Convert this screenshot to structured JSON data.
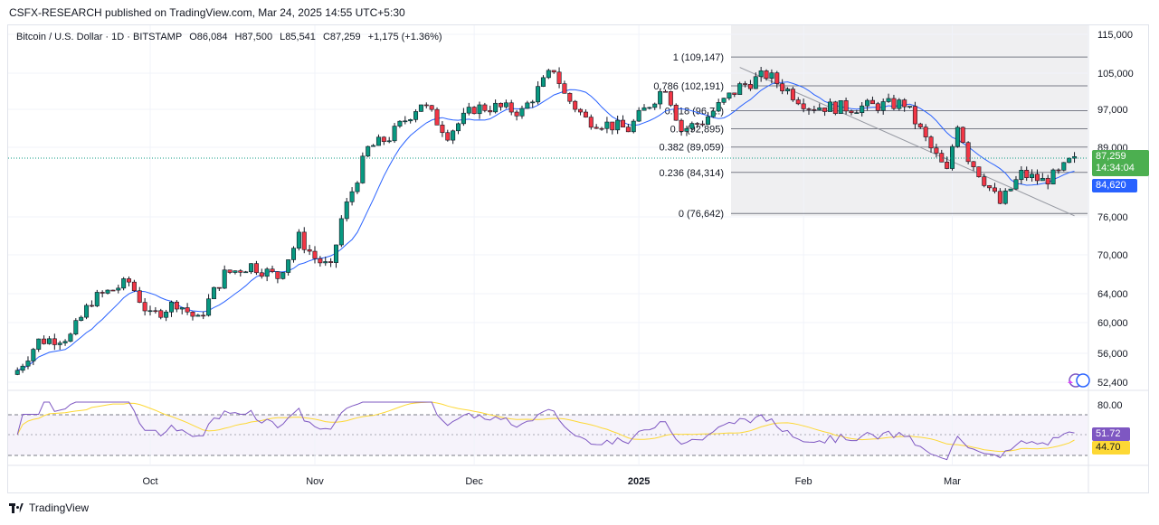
{
  "header": {
    "publisher": "CSFX-RESEARCH published on TradingView.com, Mar 24, 2025 14:55 UTC+5:30"
  },
  "legend": {
    "symbol": "Bitcoin / U.S. Dollar · 1D · BITSTAMP",
    "open": "O86,084",
    "high": "H87,500",
    "low": "L85,541",
    "close": "C87,259",
    "change": "+1,175 (+1.36%)"
  },
  "price_tags": {
    "last": "87,259",
    "countdown": "14:34:04",
    "ma": "84,620",
    "rsi": "51.72",
    "rsi_ma": "44.70"
  },
  "footer": {
    "brand": "TradingView"
  },
  "colors": {
    "up": "#089981",
    "down": "#f23645",
    "ma": "#2962ff",
    "rsi": "#7e57c2",
    "rsi_ma": "#fdd835",
    "fib": "#787b86"
  },
  "chart_data": {
    "type": "candlestick",
    "symbol": "Bitcoin / U.S. Dollar",
    "interval": "1D",
    "price_axis_ticks": [
      115000,
      105000,
      97000,
      89000,
      76000,
      70000,
      64000,
      60000,
      56000,
      52400
    ],
    "price_axis_labels": [
      "115,000",
      "105,000",
      "97,000",
      "89,000",
      "76,000",
      "70,000",
      "64,000",
      "60,000",
      "56,000",
      "52,400"
    ],
    "time_axis_labels": [
      "Oct",
      "Nov",
      "Dec",
      "2025",
      "Feb",
      "Mar"
    ],
    "time_axis_dates": [
      "2024-10-01",
      "2024-11-01",
      "2024-12-01",
      "2025-01-01",
      "2025-02-01",
      "2025-03-01"
    ],
    "fib_retracement": {
      "levels": [
        {
          "label": "1 (109,147)",
          "ratio": 1,
          "price": 109147
        },
        {
          "label": "0.786 (102,191)",
          "ratio": 0.786,
          "price": 102191
        },
        {
          "label": "0.618 (96,7..)",
          "ratio": 0.618,
          "price": 96718
        },
        {
          "label": "0.5 (92,895)",
          "ratio": 0.5,
          "price": 92895
        },
        {
          "label": "0.382 (89,059)",
          "ratio": 0.382,
          "price": 89059
        },
        {
          "label": "0.236 (84,314)",
          "ratio": 0.236,
          "price": 84314
        },
        {
          "label": "0 (76,642)",
          "ratio": 0,
          "price": 76642
        }
      ]
    },
    "trendline": {
      "from": {
        "date": "2025-01-20",
        "price": 106500
      },
      "to": {
        "date": "2025-03-24",
        "price": 76200
      }
    },
    "closes": [
      {
        "date": "2024-09-06",
        "close": 53900
      },
      {
        "date": "2024-09-10",
        "close": 57600
      },
      {
        "date": "2024-09-16",
        "close": 58200
      },
      {
        "date": "2024-09-20",
        "close": 63100
      },
      {
        "date": "2024-09-27",
        "close": 65800
      },
      {
        "date": "2024-10-01",
        "close": 60800
      },
      {
        "date": "2024-10-06",
        "close": 62800
      },
      {
        "date": "2024-10-10",
        "close": 60300
      },
      {
        "date": "2024-10-15",
        "close": 67000
      },
      {
        "date": "2024-10-20",
        "close": 68400
      },
      {
        "date": "2024-10-25",
        "close": 66600
      },
      {
        "date": "2024-10-29",
        "close": 72700
      },
      {
        "date": "2024-11-01",
        "close": 69500
      },
      {
        "date": "2024-11-04",
        "close": 67800
      },
      {
        "date": "2024-11-06",
        "close": 75600
      },
      {
        "date": "2024-11-11",
        "close": 88700
      },
      {
        "date": "2024-11-15",
        "close": 91100
      },
      {
        "date": "2024-11-21",
        "close": 98500
      },
      {
        "date": "2024-11-26",
        "close": 91800
      },
      {
        "date": "2024-12-01",
        "close": 97300
      },
      {
        "date": "2024-12-05",
        "close": 97500
      },
      {
        "date": "2024-12-10",
        "close": 96500
      },
      {
        "date": "2024-12-16",
        "close": 106100
      },
      {
        "date": "2024-12-18",
        "close": 100200
      },
      {
        "date": "2024-12-22",
        "close": 94900
      },
      {
        "date": "2024-12-30",
        "close": 92800
      },
      {
        "date": "2025-01-06",
        "close": 102200
      },
      {
        "date": "2025-01-09",
        "close": 92600
      },
      {
        "date": "2025-01-13",
        "close": 94500
      },
      {
        "date": "2025-01-20",
        "close": 102000
      },
      {
        "date": "2025-01-25",
        "close": 104700
      },
      {
        "date": "2025-02-02",
        "close": 97700
      },
      {
        "date": "2025-02-10",
        "close": 97400
      },
      {
        "date": "2025-02-20",
        "close": 98300
      },
      {
        "date": "2025-02-25",
        "close": 88700
      },
      {
        "date": "2025-02-28",
        "close": 84300
      },
      {
        "date": "2025-03-02",
        "close": 94200
      },
      {
        "date": "2025-03-04",
        "close": 87200
      },
      {
        "date": "2025-03-10",
        "close": 78500
      },
      {
        "date": "2025-03-14",
        "close": 84000
      },
      {
        "date": "2025-03-18",
        "close": 82700
      },
      {
        "date": "2025-03-21",
        "close": 84000
      },
      {
        "date": "2025-03-24",
        "close": 87259
      }
    ],
    "rsi": {
      "axis_label": "80.00",
      "upper": 70,
      "lower": 30,
      "last": 51.72,
      "ma_last": 44.7
    }
  }
}
